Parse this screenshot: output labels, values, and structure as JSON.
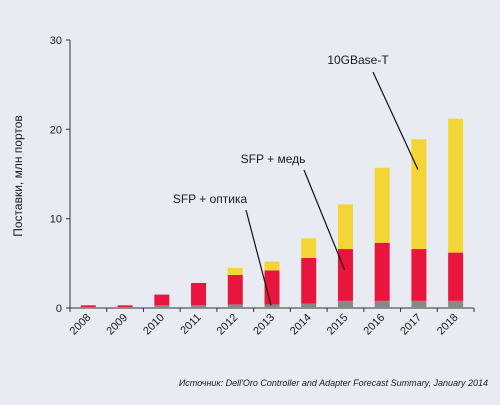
{
  "chart_data": {
    "type": "bar",
    "stacked": true,
    "categories": [
      "2008",
      "2009",
      "2010",
      "2011",
      "2012",
      "2013",
      "2014",
      "2015",
      "2016",
      "2017",
      "2018"
    ],
    "series": [
      {
        "name": "SFP + оптика",
        "color": "#888888",
        "values": [
          0.1,
          0.1,
          0.3,
          0.3,
          0.4,
          0.4,
          0.5,
          0.8,
          0.8,
          0.8,
          0.8
        ]
      },
      {
        "name": "SFP + медь",
        "color": "#e8163c",
        "values": [
          0.2,
          0.2,
          1.2,
          2.5,
          3.3,
          3.8,
          5.1,
          5.8,
          6.5,
          5.8,
          5.4
        ]
      },
      {
        "name": "10GBase-T",
        "color": "#f3d635",
        "values": [
          0.0,
          0.0,
          0.0,
          0.0,
          0.8,
          1.0,
          2.2,
          5.0,
          8.4,
          12.3,
          15.0
        ]
      }
    ],
    "ylabel": "Поставки, млн портов",
    "ylim": [
      0,
      30
    ],
    "yticks": [
      0,
      10,
      20,
      30
    ],
    "grid": false,
    "annotations": [
      {
        "text": "10GBase-T",
        "category": "2017",
        "value": 15.5
      },
      {
        "text": "SFP + медь",
        "category": "2015",
        "value": 4.3
      },
      {
        "text": "SFP + оптика",
        "category": "2013",
        "value": 0.3
      }
    ]
  },
  "source": "Источник: Dell'Oro Controller and Adapter Forecast Summary, January 2014"
}
